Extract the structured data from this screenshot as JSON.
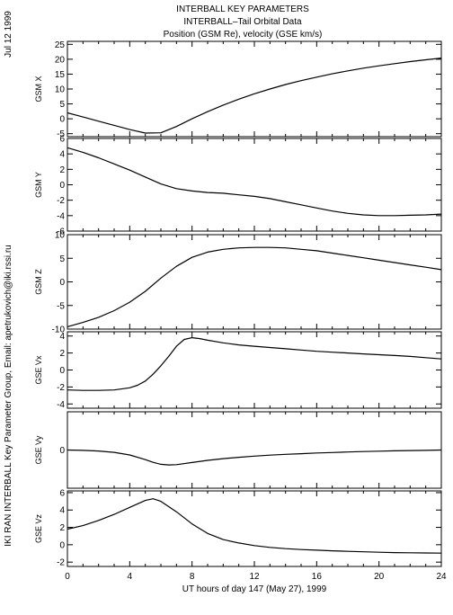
{
  "header": {
    "title_line1": "INTERBALL KEY PARAMETERS",
    "title_line2": "INTERBALL–Tail Orbital Data",
    "title_line3": "Position (GSM Re), velocity (GSE km/s)"
  },
  "side_labels": {
    "date": "Jul 12 1999",
    "credit": "IKI RAN INTERBALL Key Parameter Group, Email: apetrukovich@iki.rssi.ru"
  },
  "chart_data": {
    "type": "line",
    "xlabel": "UT hours of day 147 (May 27), 1999",
    "xlim": [
      0,
      24
    ],
    "xticks": [
      0,
      4,
      8,
      12,
      16,
      20,
      24
    ],
    "grid": false,
    "panels": [
      {
        "ylabel": "GSM X",
        "ylim": [
          -6,
          26
        ],
        "yticks": [
          -5,
          0,
          5,
          10,
          15,
          20,
          25
        ],
        "series": [
          {
            "x": [
              0,
              1,
              2,
              3,
              4,
              5,
              6,
              7,
              8,
              9,
              10,
              11,
              12,
              13,
              14,
              15,
              16,
              17,
              18,
              19,
              20,
              21,
              22,
              23,
              24
            ],
            "y": [
              2.0,
              0.6,
              -0.8,
              -2.2,
              -3.6,
              -4.8,
              -4.7,
              -2.6,
              0.0,
              2.4,
              4.6,
              6.6,
              8.4,
              10.0,
              11.5,
              12.8,
              14.0,
              15.1,
              16.1,
              17.0,
              17.8,
              18.5,
              19.2,
              19.8,
              20.4
            ]
          }
        ]
      },
      {
        "ylabel": "GSM Y",
        "ylim": [
          -6,
          6
        ],
        "yticks": [
          -6,
          -4,
          -2,
          0,
          2,
          4,
          6
        ],
        "series": [
          {
            "x": [
              0,
              1,
              2,
              3,
              4,
              5,
              6,
              7,
              8,
              9,
              10,
              11,
              12,
              13,
              14,
              15,
              16,
              17,
              18,
              19,
              20,
              21,
              22,
              23,
              24
            ],
            "y": [
              4.8,
              4.2,
              3.5,
              2.7,
              1.9,
              1.0,
              0.1,
              -0.5,
              -0.8,
              -1.0,
              -1.1,
              -1.3,
              -1.5,
              -1.8,
              -2.2,
              -2.6,
              -3.0,
              -3.4,
              -3.7,
              -3.9,
              -4.0,
              -4.0,
              -3.95,
              -3.9,
              -3.8
            ]
          }
        ]
      },
      {
        "ylabel": "GSM Z",
        "ylim": [
          -10,
          10
        ],
        "yticks": [
          -10,
          -5,
          0,
          5,
          10
        ],
        "series": [
          {
            "x": [
              0,
              1,
              2,
              3,
              4,
              5,
              6,
              7,
              8,
              9,
              10,
              11,
              12,
              13,
              14,
              15,
              16,
              17,
              18,
              19,
              20,
              21,
              22,
              23,
              24
            ],
            "y": [
              -9.5,
              -8.6,
              -7.5,
              -6.1,
              -4.3,
              -2.0,
              0.8,
              3.3,
              5.2,
              6.3,
              6.9,
              7.2,
              7.3,
              7.3,
              7.2,
              6.9,
              6.6,
              6.1,
              5.6,
              5.1,
              4.6,
              4.1,
              3.6,
              3.1,
              2.6
            ]
          }
        ]
      },
      {
        "ylabel": "GSE Vx",
        "ylim": [
          -4.5,
          4.5
        ],
        "yticks": [
          -4,
          -2,
          0,
          2,
          4
        ],
        "series": [
          {
            "x": [
              0,
              1,
              2,
              3,
              4,
              4.5,
              5,
              5.5,
              6,
              6.5,
              7,
              7.5,
              8,
              8.5,
              9,
              10,
              11,
              12,
              13,
              14,
              15,
              16,
              17,
              18,
              19,
              20,
              21,
              22,
              23,
              24
            ],
            "y": [
              -2.35,
              -2.4,
              -2.4,
              -2.35,
              -2.1,
              -1.8,
              -1.3,
              -0.5,
              0.5,
              1.6,
              2.8,
              3.6,
              3.8,
              3.7,
              3.5,
              3.2,
              2.95,
              2.8,
              2.65,
              2.5,
              2.35,
              2.2,
              2.1,
              2.0,
              1.9,
              1.8,
              1.7,
              1.6,
              1.45,
              1.3
            ]
          }
        ]
      },
      {
        "ylabel": "GSE Vy",
        "ylim": [
          -2.3,
          2.3
        ],
        "yticks": [
          0
        ],
        "series": [
          {
            "x": [
              0,
              1,
              2,
              3,
              4,
              5,
              5.5,
              6,
              6.5,
              7,
              8,
              9,
              10,
              11,
              12,
              13,
              14,
              15,
              16,
              17,
              18,
              19,
              20,
              21,
              22,
              23,
              24
            ],
            "y": [
              0.0,
              -0.02,
              -0.06,
              -0.14,
              -0.3,
              -0.58,
              -0.74,
              -0.86,
              -0.9,
              -0.88,
              -0.75,
              -0.62,
              -0.52,
              -0.44,
              -0.37,
              -0.31,
              -0.26,
              -0.22,
              -0.18,
              -0.15,
              -0.12,
              -0.09,
              -0.07,
              -0.05,
              -0.03,
              -0.02,
              0.0
            ]
          }
        ]
      },
      {
        "ylabel": "GSE Vz",
        "ylim": [
          -2.5,
          6.2
        ],
        "yticks": [
          -2,
          0,
          2,
          4,
          6
        ],
        "series": [
          {
            "x": [
              0,
              1,
              2,
              3,
              4,
              5,
              5.5,
              6,
              7,
              8,
              9,
              10,
              11,
              12,
              13,
              14,
              15,
              16,
              17,
              18,
              19,
              20,
              21,
              22,
              23,
              24
            ],
            "y": [
              1.8,
              2.2,
              2.8,
              3.5,
              4.3,
              5.1,
              5.3,
              5.0,
              3.8,
              2.4,
              1.3,
              0.6,
              0.2,
              -0.1,
              -0.3,
              -0.45,
              -0.55,
              -0.63,
              -0.7,
              -0.76,
              -0.81,
              -0.86,
              -0.9,
              -0.93,
              -0.95,
              -0.97
            ]
          }
        ]
      }
    ]
  }
}
